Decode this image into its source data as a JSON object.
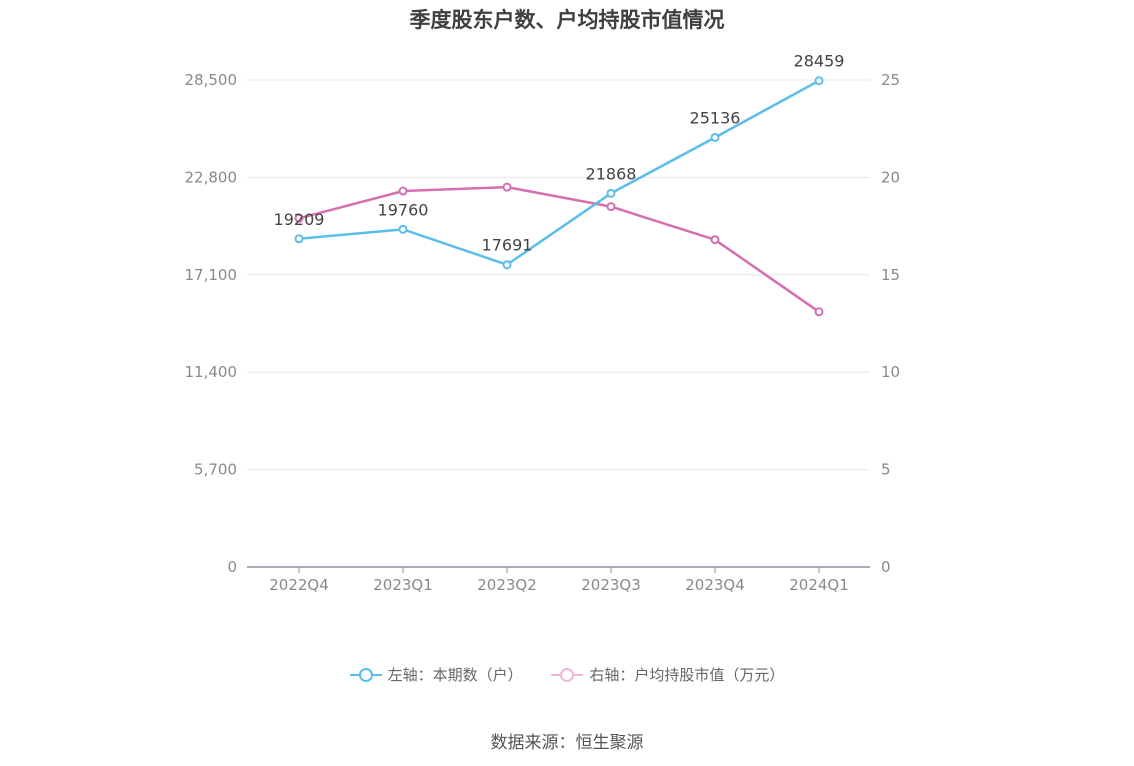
{
  "chart_data": {
    "type": "line",
    "title": "季度股东户数、户均持股市值情况",
    "categories": [
      "2022Q4",
      "2023Q1",
      "2023Q2",
      "2023Q3",
      "2023Q4",
      "2024Q1"
    ],
    "y_left": {
      "min": 0,
      "max": 28500,
      "ticks": [
        "0",
        "5,700",
        "11,400",
        "17,100",
        "22,800",
        "28,500"
      ],
      "tick_values": [
        0,
        5700,
        11400,
        17100,
        22800,
        28500
      ]
    },
    "y_right": {
      "min": 0,
      "max": 25,
      "ticks": [
        "0",
        "5",
        "10",
        "15",
        "20",
        "25"
      ],
      "tick_values": [
        0,
        5,
        10,
        15,
        20,
        25
      ]
    },
    "series": [
      {
        "name": "左轴：本期数（户）",
        "axis": "left",
        "color": "#5bbdeb",
        "values": [
          19209,
          19760,
          17691,
          21868,
          25136,
          28459
        ],
        "labels": [
          "19209",
          "19760",
          "17691",
          "21868",
          "25136",
          "28459"
        ]
      },
      {
        "name": "右轴：户均持股市值（万元）",
        "axis": "right",
        "color": "#d46fb0",
        "values": [
          17.9,
          19.3,
          19.5,
          18.5,
          16.8,
          13.1
        ]
      }
    ],
    "grid": true,
    "legend_position": "bottom"
  },
  "source": "数据来源：恒生聚源"
}
